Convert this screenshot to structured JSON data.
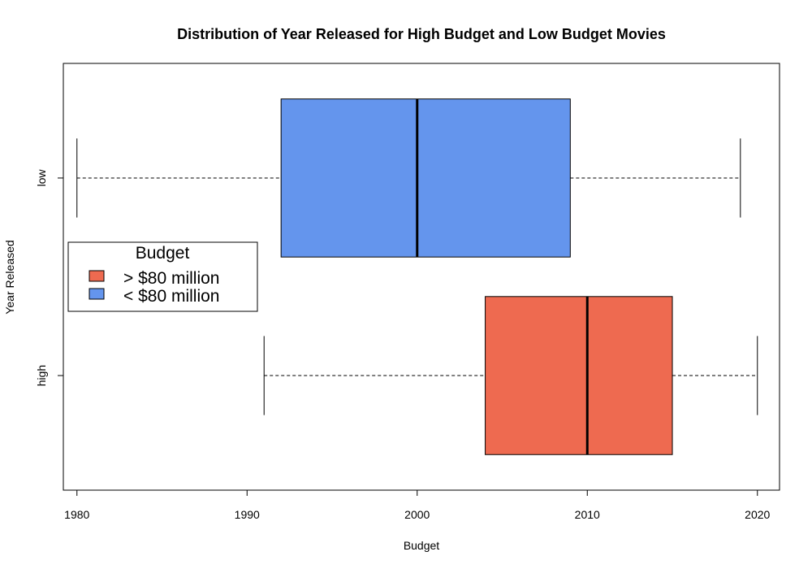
{
  "chart_data": {
    "type": "boxplot",
    "orientation": "horizontal",
    "title": "Distribution of Year Released for High Budget and Low Budget Movies",
    "xlabel": "Budget",
    "ylabel": "Year Released",
    "xlim": [
      1979.2,
      2021.3
    ],
    "x_ticks": [
      1980,
      1990,
      2000,
      2010,
      2020
    ],
    "categories": [
      "high",
      "low"
    ],
    "boxes": [
      {
        "category": "high",
        "color": "#EE6A50",
        "min": 1991,
        "q1": 2004,
        "median": 2010,
        "q3": 2015,
        "max": 2020
      },
      {
        "category": "low",
        "color": "#6495ED",
        "min": 1980,
        "q1": 1992,
        "median": 2000,
        "q3": 2009,
        "max": 2019
      }
    ],
    "legend": {
      "title": "Budget",
      "position": "left",
      "items": [
        {
          "label": "> $80 million",
          "color": "#EE6A50"
        },
        {
          "label": "< $80 million",
          "color": "#6495ED"
        }
      ]
    },
    "grid": false
  }
}
